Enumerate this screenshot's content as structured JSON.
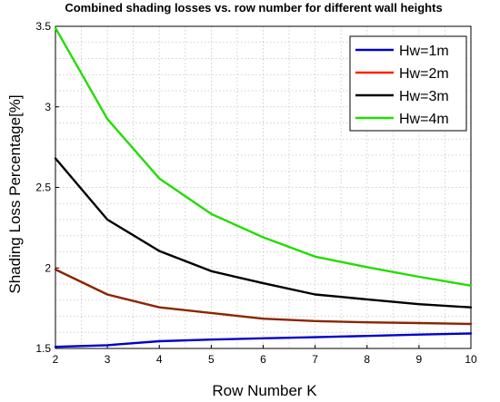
{
  "chart_data": {
    "type": "line",
    "title": "Combined shading losses vs. row number for different wall heights",
    "xlabel": "Row Number K",
    "ylabel": "Shading Loss Percentage[%]",
    "xlim": [
      2,
      10
    ],
    "ylim": [
      1.5,
      3.5
    ],
    "xticks": [
      2,
      3,
      4,
      5,
      6,
      7,
      8,
      9,
      10
    ],
    "yticks": [
      1.5,
      2,
      2.5,
      3,
      3.5
    ],
    "ytick_labels": [
      "1.5",
      "2",
      "2.5",
      "3",
      "3.5"
    ],
    "grid": true,
    "legend_position": "top-right",
    "x": [
      2,
      3,
      4,
      5,
      6,
      7,
      8,
      9,
      10
    ],
    "series": [
      {
        "name": "Hw=1m",
        "color": "#0000cc",
        "values": [
          1.51,
          1.52,
          1.545,
          1.555,
          1.563,
          1.57,
          1.578,
          1.586,
          1.593
        ]
      },
      {
        "name": "Hw=2m",
        "color": "#8b2500",
        "values": [
          1.99,
          1.835,
          1.755,
          1.72,
          1.685,
          1.67,
          1.662,
          1.658,
          1.652
        ]
      },
      {
        "name": "Hw=3m",
        "color": "#000000",
        "values": [
          2.68,
          2.3,
          2.105,
          1.98,
          1.905,
          1.835,
          1.805,
          1.775,
          1.755
        ]
      },
      {
        "name": "Hw=4m",
        "color": "#22dd00",
        "values": [
          3.49,
          2.925,
          2.555,
          2.335,
          2.19,
          2.07,
          2.005,
          1.945,
          1.89
        ]
      }
    ],
    "legend_colors": [
      "#0000cc",
      "#ff2200",
      "#000000",
      "#22dd00"
    ]
  }
}
